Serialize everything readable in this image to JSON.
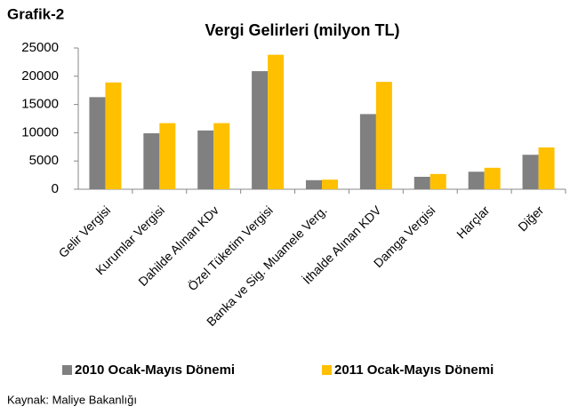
{
  "caption": "Grafik-2",
  "source": "Kaynak: Maliye Bakanlığı",
  "chart_data": {
    "type": "bar",
    "title": "Vergi Gelirleri (milyon TL)",
    "categories": [
      "Gelir Vergisi",
      "Kurumlar Vergisi",
      "Dahilde Alınan KDv",
      "Özel Tüketim Vergisi",
      "Banka ve Sig. Muamele Verg.",
      "İthalde Alınan KDV",
      "Damga Vergisi",
      "Harçlar",
      "Diğer"
    ],
    "series": [
      {
        "name": "2010 Ocak-Mayıs Dönemi",
        "color": "#808080",
        "values": [
          16300,
          9900,
          10400,
          20900,
          1600,
          13300,
          2200,
          3100,
          6100
        ]
      },
      {
        "name": "2011 Ocak-Mayıs Dönemi",
        "color": "#ffc000",
        "values": [
          18900,
          11700,
          11700,
          23800,
          1700,
          19000,
          2700,
          3800,
          7400
        ]
      }
    ],
    "ylim": [
      0,
      25000
    ],
    "yticks": [
      0,
      5000,
      10000,
      15000,
      20000,
      25000
    ],
    "grid": false,
    "legend": "bottom"
  }
}
